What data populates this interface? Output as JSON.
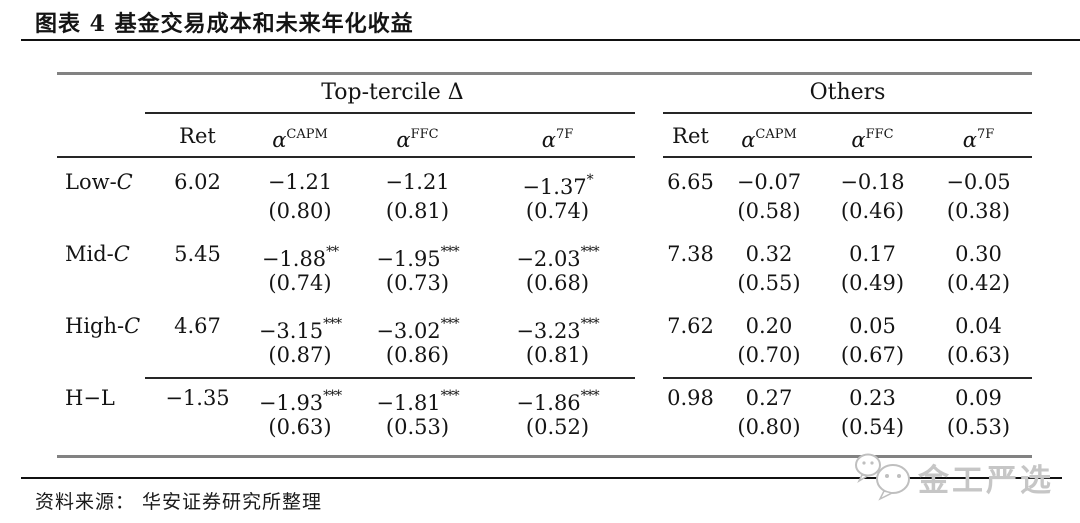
{
  "page": {
    "title": "图表 4  基金交易成本和未来年化收益",
    "source": "资料来源： 华安证券研究所整理",
    "watermark": "金工严选"
  },
  "colors": {
    "text": "#141414",
    "rule_heavy": "#828282",
    "rule_light": "#262626",
    "page_rule": "#111111",
    "watermark": "#c6c6c6"
  },
  "table": {
    "groups": [
      {
        "label": "Top-tercile Δ"
      },
      {
        "label": "Others"
      }
    ],
    "subcolumns": [
      {
        "base": "Ret",
        "sup": ""
      },
      {
        "base": "α",
        "sup": "CAPM"
      },
      {
        "base": "α",
        "sup": "FFC"
      },
      {
        "base": "α",
        "sup": "7F"
      },
      {
        "base": "Ret",
        "sup": ""
      },
      {
        "base": "α",
        "sup": "CAPM"
      },
      {
        "base": "α",
        "sup": "FFC"
      },
      {
        "base": "α",
        "sup": "7F"
      }
    ],
    "rows": [
      {
        "label": "Low-",
        "script_c": true,
        "cells": [
          {
            "v": "6.02",
            "stars": "",
            "se": ""
          },
          {
            "v": "−1.21",
            "stars": "",
            "se": "(0.80)"
          },
          {
            "v": "−1.21",
            "stars": "",
            "se": "(0.81)"
          },
          {
            "v": "−1.37",
            "stars": "*",
            "se": "(0.74)"
          },
          {
            "v": "6.65",
            "stars": "",
            "se": ""
          },
          {
            "v": "−0.07",
            "stars": "",
            "se": "(0.58)"
          },
          {
            "v": "−0.18",
            "stars": "",
            "se": "(0.46)"
          },
          {
            "v": "−0.05",
            "stars": "",
            "se": "(0.38)"
          }
        ]
      },
      {
        "label": "Mid-",
        "script_c": true,
        "cells": [
          {
            "v": "5.45",
            "stars": "",
            "se": ""
          },
          {
            "v": "−1.88",
            "stars": "**",
            "se": "(0.74)"
          },
          {
            "v": "−1.95",
            "stars": "***",
            "se": "(0.73)"
          },
          {
            "v": "−2.03",
            "stars": "***",
            "se": "(0.68)"
          },
          {
            "v": "7.38",
            "stars": "",
            "se": ""
          },
          {
            "v": "0.32",
            "stars": "",
            "se": "(0.55)"
          },
          {
            "v": "0.17",
            "stars": "",
            "se": "(0.49)"
          },
          {
            "v": "0.30",
            "stars": "",
            "se": "(0.42)"
          }
        ]
      },
      {
        "label": "High-",
        "script_c": true,
        "cells": [
          {
            "v": "4.67",
            "stars": "",
            "se": ""
          },
          {
            "v": "−3.15",
            "stars": "***",
            "se": "(0.87)"
          },
          {
            "v": "−3.02",
            "stars": "***",
            "se": "(0.86)"
          },
          {
            "v": "−3.23",
            "stars": "***",
            "se": "(0.81)"
          },
          {
            "v": "7.62",
            "stars": "",
            "se": ""
          },
          {
            "v": "0.20",
            "stars": "",
            "se": "(0.70)"
          },
          {
            "v": "0.05",
            "stars": "",
            "se": "(0.67)"
          },
          {
            "v": "0.04",
            "stars": "",
            "se": "(0.63)"
          }
        ]
      },
      {
        "label": "H−L",
        "script_c": false,
        "cells": [
          {
            "v": "−1.35",
            "stars": "",
            "se": ""
          },
          {
            "v": "−1.93",
            "stars": "***",
            "se": "(0.63)"
          },
          {
            "v": "−1.81",
            "stars": "***",
            "se": "(0.53)"
          },
          {
            "v": "−1.86",
            "stars": "***",
            "se": "(0.52)"
          },
          {
            "v": "0.98",
            "stars": "",
            "se": ""
          },
          {
            "v": "0.27",
            "stars": "",
            "se": "(0.80)"
          },
          {
            "v": "0.23",
            "stars": "",
            "se": "(0.54)"
          },
          {
            "v": "0.09",
            "stars": "",
            "se": "(0.53)"
          }
        ]
      }
    ]
  },
  "chart_data": {
    "type": "table",
    "title": "图表 4 基金交易成本和未来年化收益",
    "group_headers": [
      "Top-tercile Δ",
      "Others"
    ],
    "columns": [
      "Ret",
      "α^CAPM",
      "α^FFC",
      "α^7F",
      "Ret",
      "α^CAPM",
      "α^FFC",
      "α^7F"
    ],
    "row_labels": [
      "Low-C",
      "Mid-C",
      "High-C",
      "H−L"
    ],
    "values": [
      [
        6.02,
        -1.21,
        -1.21,
        -1.37,
        6.65,
        -0.07,
        -0.18,
        -0.05
      ],
      [
        5.45,
        -1.88,
        -1.95,
        -2.03,
        7.38,
        0.32,
        0.17,
        0.3
      ],
      [
        4.67,
        -3.15,
        -3.02,
        -3.23,
        7.62,
        0.2,
        0.05,
        0.04
      ],
      [
        -1.35,
        -1.93,
        -1.81,
        -1.86,
        0.98,
        0.27,
        0.23,
        0.09
      ]
    ],
    "standard_errors": [
      [
        null,
        0.8,
        0.81,
        0.74,
        null,
        0.58,
        0.46,
        0.38
      ],
      [
        null,
        0.74,
        0.73,
        0.68,
        null,
        0.55,
        0.49,
        0.42
      ],
      [
        null,
        0.87,
        0.86,
        0.81,
        null,
        0.7,
        0.67,
        0.63
      ],
      [
        null,
        0.63,
        0.53,
        0.52,
        null,
        0.8,
        0.54,
        0.53
      ]
    ],
    "significance_stars": [
      [
        "",
        "",
        "",
        "*",
        "",
        "",
        "",
        ""
      ],
      [
        "",
        "**",
        "***",
        "***",
        "",
        "",
        "",
        ""
      ],
      [
        "",
        "***",
        "***",
        "***",
        "",
        "",
        "",
        ""
      ],
      [
        "",
        "***",
        "***",
        "***",
        "",
        "",
        "",
        ""
      ]
    ]
  }
}
